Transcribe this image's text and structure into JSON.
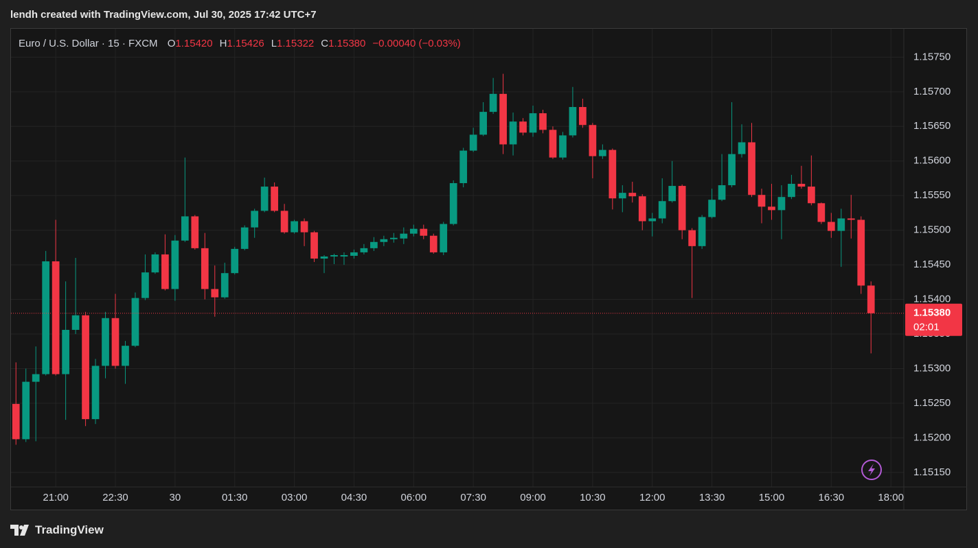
{
  "caption": "lendh created with TradingView.com, Jul 30, 2025 17:42 UTC+7",
  "legend": {
    "symbol": "Euro / U.S. Dollar · 15 · FXCM",
    "fields": [
      {
        "key": "O",
        "value": "1.15420"
      },
      {
        "key": "H",
        "value": "1.15426"
      },
      {
        "key": "L",
        "value": "1.15322"
      },
      {
        "key": "C",
        "value": "1.15380"
      }
    ],
    "change": "−0.00040 (−0.03%)"
  },
  "last_price_label": {
    "price": "1.15380",
    "countdown": "02:01"
  },
  "brand": "TradingView",
  "chart_data": {
    "type": "candlestick",
    "up_color": "#089981",
    "down_color": "#f23645",
    "grid": true,
    "ylim": [
      1.15129,
      1.15791
    ],
    "xlim": [
      -0.5,
      89.3
    ],
    "yticks": [
      {
        "value": 1.1515,
        "label": "1.15150"
      },
      {
        "value": 1.152,
        "label": "1.15200"
      },
      {
        "value": 1.1525,
        "label": "1.15250"
      },
      {
        "value": 1.153,
        "label": "1.15300"
      },
      {
        "value": 1.1535,
        "label": "1.15350"
      },
      {
        "value": 1.154,
        "label": "1.15400"
      },
      {
        "value": 1.1545,
        "label": "1.15450"
      },
      {
        "value": 1.155,
        "label": "1.15500"
      },
      {
        "value": 1.1555,
        "label": "1.15550"
      },
      {
        "value": 1.156,
        "label": "1.15600"
      },
      {
        "value": 1.1565,
        "label": "1.15650"
      },
      {
        "value": 1.157,
        "label": "1.15700"
      },
      {
        "value": 1.1575,
        "label": "1.15750"
      }
    ],
    "xticks": [
      {
        "value": 4,
        "label": "21:00"
      },
      {
        "value": 10,
        "label": "22:30"
      },
      {
        "value": 16,
        "label": "30"
      },
      {
        "value": 22,
        "label": "01:30"
      },
      {
        "value": 28,
        "label": "03:00"
      },
      {
        "value": 34,
        "label": "04:30"
      },
      {
        "value": 40,
        "label": "06:00"
      },
      {
        "value": 46,
        "label": "07:30"
      },
      {
        "value": 52,
        "label": "09:00"
      },
      {
        "value": 58,
        "label": "10:30"
      },
      {
        "value": 64,
        "label": "12:00"
      },
      {
        "value": 70,
        "label": "13:30"
      },
      {
        "value": 76,
        "label": "15:00"
      },
      {
        "value": 82,
        "label": "16:30"
      },
      {
        "value": 88,
        "label": "18:00"
      }
    ],
    "candles": [
      {
        "open": 1.15249,
        "high": 1.15309,
        "low": 1.1519,
        "close": 1.15198
      },
      {
        "open": 1.15198,
        "high": 1.153,
        "low": 1.15194,
        "close": 1.15281
      },
      {
        "open": 1.15281,
        "high": 1.15332,
        "low": 1.15195,
        "close": 1.15292
      },
      {
        "open": 1.15292,
        "high": 1.1547,
        "low": 1.1529,
        "close": 1.15455
      },
      {
        "open": 1.15455,
        "high": 1.15515,
        "low": 1.1529,
        "close": 1.15292
      },
      {
        "open": 1.15292,
        "high": 1.15426,
        "low": 1.15226,
        "close": 1.15356
      },
      {
        "open": 1.15356,
        "high": 1.1546,
        "low": 1.1535,
        "close": 1.15377
      },
      {
        "open": 1.15377,
        "high": 1.15382,
        "low": 1.15217,
        "close": 1.15227
      },
      {
        "open": 1.15227,
        "high": 1.15314,
        "low": 1.1522,
        "close": 1.15304
      },
      {
        "open": 1.15304,
        "high": 1.15382,
        "low": 1.15286,
        "close": 1.15373
      },
      {
        "open": 1.15373,
        "high": 1.15408,
        "low": 1.153,
        "close": 1.15304
      },
      {
        "open": 1.15304,
        "high": 1.1534,
        "low": 1.15278,
        "close": 1.15333
      },
      {
        "open": 1.15333,
        "high": 1.1541,
        "low": 1.15331,
        "close": 1.15402
      },
      {
        "open": 1.15402,
        "high": 1.15465,
        "low": 1.15399,
        "close": 1.15439
      },
      {
        "open": 1.15439,
        "high": 1.15468,
        "low": 1.15437,
        "close": 1.15465
      },
      {
        "open": 1.15465,
        "high": 1.15494,
        "low": 1.15413,
        "close": 1.15415
      },
      {
        "open": 1.15415,
        "high": 1.15493,
        "low": 1.15398,
        "close": 1.15485
      },
      {
        "open": 1.15485,
        "high": 1.15605,
        "low": 1.15483,
        "close": 1.1552
      },
      {
        "open": 1.1552,
        "high": 1.15522,
        "low": 1.15472,
        "close": 1.15474
      },
      {
        "open": 1.15474,
        "high": 1.15496,
        "low": 1.154,
        "close": 1.15415
      },
      {
        "open": 1.15415,
        "high": 1.15449,
        "low": 1.15375,
        "close": 1.15403
      },
      {
        "open": 1.15403,
        "high": 1.15453,
        "low": 1.15401,
        "close": 1.15438
      },
      {
        "open": 1.15438,
        "high": 1.15476,
        "low": 1.15436,
        "close": 1.15473
      },
      {
        "open": 1.15473,
        "high": 1.15507,
        "low": 1.15471,
        "close": 1.15504
      },
      {
        "open": 1.15504,
        "high": 1.15531,
        "low": 1.15489,
        "close": 1.15528
      },
      {
        "open": 1.15528,
        "high": 1.15576,
        "low": 1.15526,
        "close": 1.15563
      },
      {
        "open": 1.15563,
        "high": 1.15569,
        "low": 1.15526,
        "close": 1.15528
      },
      {
        "open": 1.15528,
        "high": 1.15538,
        "low": 1.15495,
        "close": 1.15497
      },
      {
        "open": 1.15497,
        "high": 1.15515,
        "low": 1.15495,
        "close": 1.15513
      },
      {
        "open": 1.15513,
        "high": 1.15517,
        "low": 1.15477,
        "close": 1.15497
      },
      {
        "open": 1.15497,
        "high": 1.15499,
        "low": 1.15454,
        "close": 1.15459
      },
      {
        "open": 1.15459,
        "high": 1.15464,
        "low": 1.15438,
        "close": 1.15462
      },
      {
        "open": 1.15462,
        "high": 1.15466,
        "low": 1.15451,
        "close": 1.15464
      },
      {
        "open": 1.15462,
        "high": 1.15468,
        "low": 1.1545,
        "close": 1.15464
      },
      {
        "open": 1.15463,
        "high": 1.15472,
        "low": 1.15459,
        "close": 1.15468
      },
      {
        "open": 1.15468,
        "high": 1.1548,
        "low": 1.15465,
        "close": 1.15474
      },
      {
        "open": 1.15474,
        "high": 1.1549,
        "low": 1.1547,
        "close": 1.15483
      },
      {
        "open": 1.15483,
        "high": 1.15492,
        "low": 1.15477,
        "close": 1.15487
      },
      {
        "open": 1.15487,
        "high": 1.15496,
        "low": 1.15482,
        "close": 1.15489
      },
      {
        "open": 1.15488,
        "high": 1.15504,
        "low": 1.1548,
        "close": 1.15495
      },
      {
        "open": 1.15495,
        "high": 1.15508,
        "low": 1.15491,
        "close": 1.15502
      },
      {
        "open": 1.15502,
        "high": 1.15508,
        "low": 1.15487,
        "close": 1.15492
      },
      {
        "open": 1.15492,
        "high": 1.15495,
        "low": 1.15466,
        "close": 1.15468
      },
      {
        "open": 1.15468,
        "high": 1.15512,
        "low": 1.15464,
        "close": 1.15509
      },
      {
        "open": 1.15509,
        "high": 1.15572,
        "low": 1.15507,
        "close": 1.15568
      },
      {
        "open": 1.15568,
        "high": 1.15619,
        "low": 1.15562,
        "close": 1.15615
      },
      {
        "open": 1.15615,
        "high": 1.15648,
        "low": 1.15613,
        "close": 1.15638
      },
      {
        "open": 1.15638,
        "high": 1.15685,
        "low": 1.15636,
        "close": 1.15671
      },
      {
        "open": 1.15671,
        "high": 1.1572,
        "low": 1.15668,
        "close": 1.15697
      },
      {
        "open": 1.15697,
        "high": 1.15726,
        "low": 1.1561,
        "close": 1.15624
      },
      {
        "open": 1.15624,
        "high": 1.1567,
        "low": 1.15608,
        "close": 1.15657
      },
      {
        "open": 1.15657,
        "high": 1.15662,
        "low": 1.15637,
        "close": 1.15641
      },
      {
        "open": 1.15641,
        "high": 1.1568,
        "low": 1.15635,
        "close": 1.15669
      },
      {
        "open": 1.15669,
        "high": 1.15674,
        "low": 1.1564,
        "close": 1.15645
      },
      {
        "open": 1.15645,
        "high": 1.1565,
        "low": 1.15603,
        "close": 1.15605
      },
      {
        "open": 1.15605,
        "high": 1.15642,
        "low": 1.15602,
        "close": 1.15637
      },
      {
        "open": 1.15637,
        "high": 1.15707,
        "low": 1.15634,
        "close": 1.15678
      },
      {
        "open": 1.15678,
        "high": 1.1569,
        "low": 1.15648,
        "close": 1.15652
      },
      {
        "open": 1.15652,
        "high": 1.15655,
        "low": 1.15575,
        "close": 1.15607
      },
      {
        "open": 1.15607,
        "high": 1.15624,
        "low": 1.15603,
        "close": 1.15616
      },
      {
        "open": 1.15616,
        "high": 1.15618,
        "low": 1.1553,
        "close": 1.15546
      },
      {
        "open": 1.15546,
        "high": 1.15565,
        "low": 1.15526,
        "close": 1.15554
      },
      {
        "open": 1.15554,
        "high": 1.1557,
        "low": 1.1554,
        "close": 1.15549
      },
      {
        "open": 1.15549,
        "high": 1.15552,
        "low": 1.155,
        "close": 1.15513
      },
      {
        "open": 1.15513,
        "high": 1.15525,
        "low": 1.15491,
        "close": 1.15517
      },
      {
        "open": 1.15517,
        "high": 1.15575,
        "low": 1.1551,
        "close": 1.15542
      },
      {
        "open": 1.15542,
        "high": 1.156,
        "low": 1.1554,
        "close": 1.15564
      },
      {
        "open": 1.15564,
        "high": 1.15566,
        "low": 1.15487,
        "close": 1.155
      },
      {
        "open": 1.155,
        "high": 1.15503,
        "low": 1.15402,
        "close": 1.15477
      },
      {
        "open": 1.15477,
        "high": 1.15522,
        "low": 1.15473,
        "close": 1.15519
      },
      {
        "open": 1.15519,
        "high": 1.1556,
        "low": 1.15517,
        "close": 1.15544
      },
      {
        "open": 1.15544,
        "high": 1.1561,
        "low": 1.15542,
        "close": 1.15565
      },
      {
        "open": 1.15565,
        "high": 1.15685,
        "low": 1.15562,
        "close": 1.1561
      },
      {
        "open": 1.1561,
        "high": 1.15653,
        "low": 1.15605,
        "close": 1.15627
      },
      {
        "open": 1.15627,
        "high": 1.15655,
        "low": 1.15548,
        "close": 1.15551
      },
      {
        "open": 1.15551,
        "high": 1.1556,
        "low": 1.1551,
        "close": 1.15534
      },
      {
        "open": 1.15534,
        "high": 1.15567,
        "low": 1.15515,
        "close": 1.15529
      },
      {
        "open": 1.15529,
        "high": 1.15565,
        "low": 1.15487,
        "close": 1.15548
      },
      {
        "open": 1.15548,
        "high": 1.1558,
        "low": 1.15545,
        "close": 1.15567
      },
      {
        "open": 1.15567,
        "high": 1.15593,
        "low": 1.1556,
        "close": 1.15563
      },
      {
        "open": 1.15563,
        "high": 1.15608,
        "low": 1.15536,
        "close": 1.15539
      },
      {
        "open": 1.15539,
        "high": 1.1554,
        "low": 1.15509,
        "close": 1.15512
      },
      {
        "open": 1.15512,
        "high": 1.15525,
        "low": 1.15489,
        "close": 1.15499
      },
      {
        "open": 1.15499,
        "high": 1.15531,
        "low": 1.15447,
        "close": 1.15517
      },
      {
        "open": 1.15517,
        "high": 1.15551,
        "low": 1.15488,
        "close": 1.15515
      },
      {
        "open": 1.15515,
        "high": 1.1552,
        "low": 1.15408,
        "close": 1.1542
      },
      {
        "open": 1.1542,
        "high": 1.15426,
        "low": 1.15322,
        "close": 1.1538
      }
    ]
  }
}
